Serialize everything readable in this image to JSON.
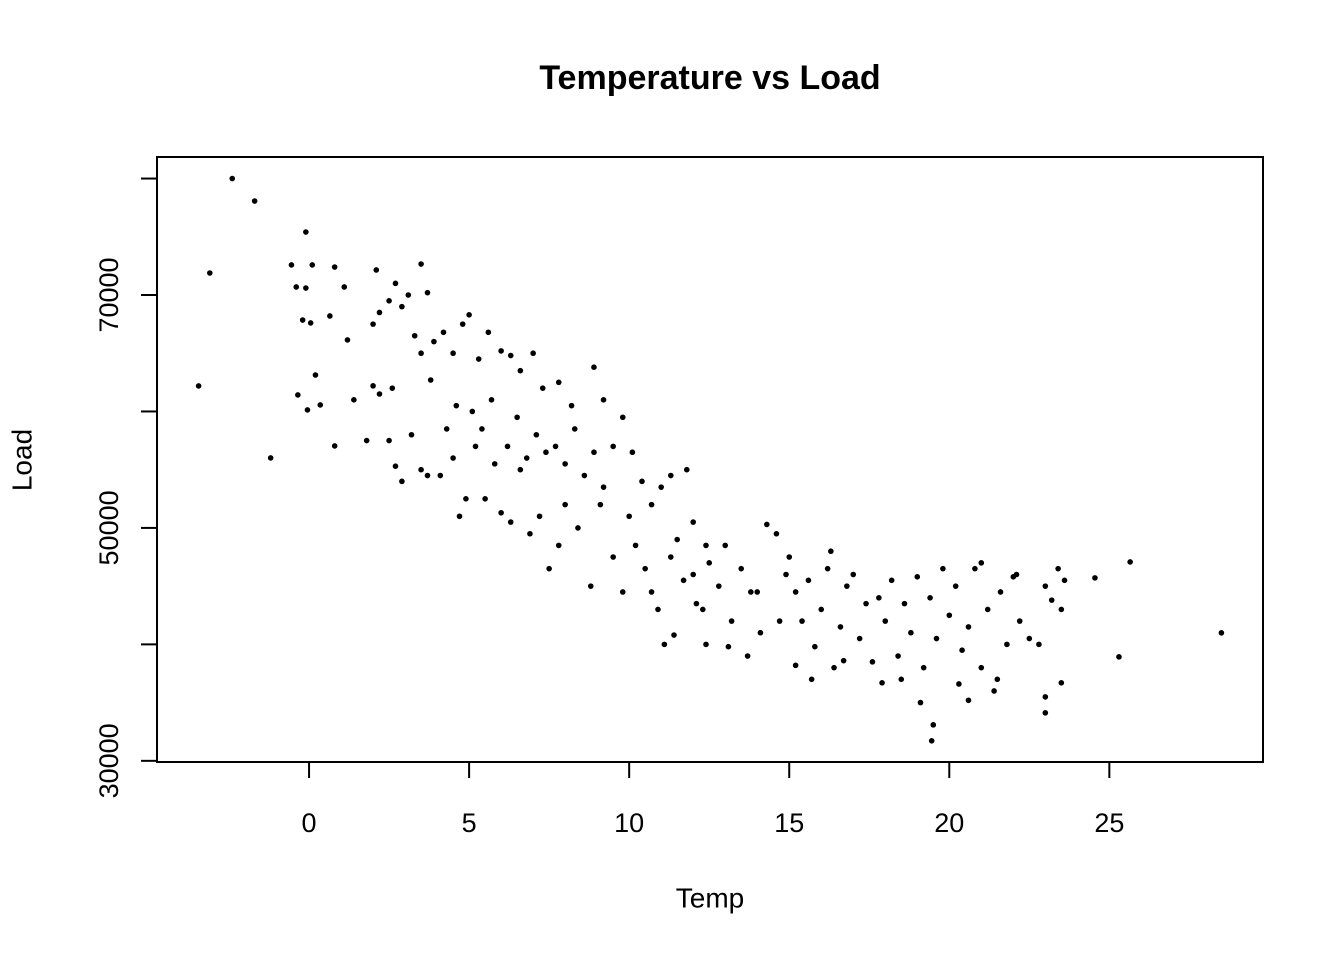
{
  "chart_data": {
    "type": "scatter",
    "title": "Temperature vs Load",
    "x_label": "Temp",
    "y_label": "Load",
    "color": "#000000",
    "x": [
      -2.4,
      -1.7,
      -3.1,
      -3.45,
      -1.2,
      -0.1,
      -0.55,
      0.1,
      0.8,
      2.1,
      3.5,
      -0.4,
      -0.1,
      1.1,
      -0.2,
      0.05,
      0.65,
      1.2,
      0.2,
      -0.35,
      -0.05,
      0.35,
      0.8,
      25.65,
      28.5,
      25.3,
      24.55,
      19.45,
      19.5,
      23.0,
      23.5,
      23.0,
      2,
      2.2,
      2.5,
      2.7,
      2.9,
      3.1,
      3.3,
      3.5,
      3.7,
      3.9,
      4.2,
      4.5,
      4.8,
      5.0,
      5.3,
      5.6,
      6.0,
      6.3,
      6.6,
      7.0,
      7.3,
      7.8,
      8.2,
      8.9,
      9.2,
      2,
      2.2,
      2.5,
      2.7,
      2.9,
      3.2,
      3.5,
      3.7,
      4.1,
      4.5,
      4.7,
      4.9,
      5.2,
      5.5,
      5.8,
      6.0,
      6.3,
      6.6,
      6.9,
      7.2,
      7.5,
      7.8,
      8.0,
      8.4,
      8.8,
      9.1,
      9.5,
      9.8,
      1.4,
      1.8,
      2.6,
      3.8,
      4.3,
      4.6,
      5.1,
      5.4,
      5.7,
      6.2,
      6.5,
      6.8,
      7.1,
      7.4,
      7.7,
      8.0,
      8.3,
      8.6,
      8.9,
      9.2,
      9.5,
      9.8,
      10.1,
      10.4,
      10.7,
      11.0,
      11.3,
      11.8,
      12.0,
      12.4,
      10.0,
      10.2,
      10.5,
      10.7,
      10.9,
      11.1,
      11.3,
      11.5,
      11.7,
      12.0,
      12.3,
      12.5,
      12.8,
      13.0,
      13.2,
      13.5,
      13.8,
      14.1,
      14.3,
      14.6,
      14.9,
      13.1,
      12.4,
      11.4,
      15.0,
      15.2,
      15.4,
      15.6,
      15.8,
      16.0,
      16.2,
      16.4,
      16.6,
      16.8,
      17.0,
      17.2,
      17.4,
      17.6,
      17.8,
      18.0,
      18.2,
      18.4,
      18.6,
      18.8,
      19.0,
      19.2,
      19.4,
      19.6,
      19.8,
      20.0,
      20.2,
      20.4,
      20.6,
      20.8,
      21.0,
      21.2,
      21.4,
      21.6,
      21.8,
      22.0,
      22.2,
      22.5,
      22.8,
      23.2,
      23.4,
      23.6,
      15.2,
      15.7,
      16.7,
      17.9,
      18.5,
      19.1,
      20.3,
      20.6,
      21.5,
      23.0,
      23.5,
      16.3,
      14.0,
      14.7,
      13.7,
      12.1,
      21.0,
      22.1
    ],
    "y": [
      80000,
      78070,
      71890,
      62190,
      56010,
      75410,
      72580,
      72580,
      72400,
      72150,
      72660,
      70690,
      70600,
      70690,
      67850,
      67600,
      68200,
      66140,
      63130,
      61420,
      60130,
      60560,
      57040,
      47080,
      40990,
      38930,
      45710,
      31720,
      33090,
      34120,
      36700,
      35490,
      67500,
      68500,
      69500,
      71000,
      69000,
      70000,
      66500,
      65000,
      70200,
      66000,
      66800,
      65000,
      67500,
      68300,
      64500,
      66800,
      65200,
      64800,
      63500,
      65000,
      62000,
      62500,
      60500,
      63800,
      61000,
      62200,
      61500,
      57500,
      55300,
      54000,
      58000,
      55000,
      54500,
      54500,
      56000,
      51000,
      52500,
      57000,
      52500,
      55500,
      51300,
      50500,
      55000,
      49500,
      51000,
      46500,
      48500,
      52000,
      50000,
      45000,
      52000,
      47500,
      44500,
      61000,
      57500,
      62000,
      62700,
      58500,
      60500,
      60000,
      58500,
      61000,
      57000,
      59500,
      56000,
      58000,
      56500,
      57000,
      55500,
      58500,
      54500,
      56500,
      53500,
      57000,
      59500,
      56500,
      54000,
      52000,
      53500,
      54500,
      55000,
      50500,
      48500,
      51000,
      48500,
      46500,
      44500,
      43000,
      40000,
      47500,
      49000,
      45500,
      46000,
      43000,
      47000,
      45000,
      48500,
      42000,
      46500,
      44500,
      41000,
      50300,
      49500,
      46000,
      39800,
      40000,
      40800,
      47500,
      44500,
      42000,
      45500,
      39800,
      43000,
      46500,
      38000,
      41500,
      45000,
      46000,
      40500,
      43500,
      38500,
      44000,
      42000,
      45500,
      39000,
      43500,
      41000,
      45800,
      38000,
      44000,
      40500,
      46500,
      42500,
      45000,
      39500,
      41500,
      46500,
      38000,
      43000,
      36000,
      44500,
      40000,
      45800,
      42000,
      40500,
      40000,
      43800,
      46500,
      45500,
      38200,
      37000,
      38600,
      36700,
      37000,
      35000,
      36600,
      35200,
      37000,
      45000,
      43000,
      48000,
      44500,
      42000,
      39000,
      43500,
      47000,
      46000
    ],
    "xlim": [
      -4.75,
      29.8
    ],
    "ylim": [
      29900,
      81850
    ],
    "xticks": [
      0,
      5,
      10,
      15,
      20,
      25
    ],
    "yticks": [
      30000,
      50000,
      70000
    ],
    "yminor_ticks": [
      40000,
      60000,
      80000
    ]
  }
}
